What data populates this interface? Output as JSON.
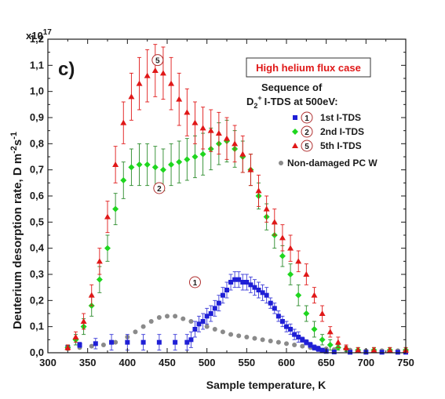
{
  "chart_data": {
    "type": "scatter",
    "panel_label": "c)",
    "title_box": "High helium flux case",
    "legend_header": [
      "Sequence of",
      "I-TDS at 500eV:"
    ],
    "legend_species": {
      "base": "D",
      "sub": "2",
      "sup": "+"
    },
    "xlabel": "Sample temperature, K",
    "ylabel_main": "Deuterium desorption rate,  D m",
    "ylabel_exp1": "-2",
    "ylabel_mid": "s",
    "ylabel_exp2": "-1",
    "y_multiplier": "x10",
    "y_multiplier_exp": "17",
    "xlim": [
      300,
      750
    ],
    "ylim": [
      0,
      1.2
    ],
    "x_ticks": [
      "300",
      "350",
      "400",
      "450",
      "500",
      "550",
      "600",
      "650",
      "700",
      "750"
    ],
    "y_ticks": [
      "0,0",
      "0,1",
      "0,2",
      "0,3",
      "0,4",
      "0,5",
      "0,6",
      "0,7",
      "0,8",
      "0,9",
      "1,0",
      "1,1",
      "1,2"
    ],
    "legend": [
      {
        "marker_label": "1",
        "name": "1st I-TDS",
        "color": "#1f1fd6",
        "shape": "square"
      },
      {
        "marker_label": "2",
        "name": "2nd I-TDS",
        "color": "#1fd61f",
        "shape": "diamond"
      },
      {
        "marker_label": "5",
        "name": "5th I-TDS",
        "color": "#e01818",
        "shape": "triangle"
      },
      {
        "marker_label": "",
        "name": "Non-damaged PC W",
        "color": "#8a8a8a",
        "shape": "circle"
      }
    ],
    "curve_markers": [
      {
        "label": "5",
        "x": 438,
        "y": 1.12
      },
      {
        "label": "2",
        "x": 440,
        "y": 0.63
      },
      {
        "label": "1",
        "x": 485,
        "y": 0.27
      }
    ],
    "series": [
      {
        "name": "1st I-TDS",
        "color": "#1f1fd6",
        "error_color": "#3a3ad8",
        "x": [
          325,
          340,
          360,
          380,
          400,
          420,
          440,
          460,
          475,
          480,
          485,
          490,
          495,
          500,
          505,
          510,
          515,
          520,
          525,
          530,
          535,
          540,
          545,
          550,
          555,
          560,
          565,
          570,
          575,
          580,
          585,
          590,
          595,
          600,
          605,
          610,
          615,
          620,
          625,
          630,
          635,
          640,
          645,
          650,
          660,
          680,
          700,
          720,
          740,
          750
        ],
        "y": [
          0.02,
          0.03,
          0.035,
          0.04,
          0.04,
          0.04,
          0.04,
          0.04,
          0.04,
          0.05,
          0.09,
          0.11,
          0.12,
          0.14,
          0.15,
          0.17,
          0.19,
          0.22,
          0.24,
          0.27,
          0.28,
          0.28,
          0.27,
          0.27,
          0.26,
          0.25,
          0.24,
          0.23,
          0.22,
          0.19,
          0.17,
          0.14,
          0.12,
          0.1,
          0.09,
          0.07,
          0.06,
          0.05,
          0.04,
          0.03,
          0.02,
          0.015,
          0.01,
          0.005,
          0.003,
          0.002,
          0.002,
          0.002,
          0.002,
          0.002
        ],
        "err": [
          0.005,
          0.01,
          0.02,
          0.03,
          0.03,
          0.03,
          0.03,
          0.03,
          0.03,
          0.03,
          0.03,
          0.03,
          0.03,
          0.03,
          0.03,
          0.03,
          0.03,
          0.03,
          0.03,
          0.03,
          0.03,
          0.03,
          0.03,
          0.03,
          0.03,
          0.03,
          0.03,
          0.03,
          0.03,
          0.02,
          0.02,
          0.02,
          0.02,
          0.02,
          0.02,
          0.02,
          0.02,
          0.01,
          0.01,
          0.01,
          0.01,
          0.01,
          0.005,
          0.005,
          0.003,
          0.002,
          0.002,
          0.002,
          0.002,
          0.002
        ]
      },
      {
        "name": "2nd I-TDS",
        "color": "#1fd61f",
        "error_color": "#2a8a2a",
        "x": [
          325,
          335,
          345,
          355,
          365,
          375,
          385,
          395,
          405,
          415,
          425,
          435,
          445,
          455,
          465,
          475,
          485,
          495,
          505,
          515,
          525,
          535,
          545,
          555,
          565,
          575,
          585,
          595,
          605,
          615,
          625,
          635,
          645,
          655,
          665,
          675,
          690,
          710,
          730,
          750
        ],
        "y": [
          0.02,
          0.05,
          0.1,
          0.18,
          0.28,
          0.4,
          0.55,
          0.66,
          0.71,
          0.72,
          0.72,
          0.71,
          0.7,
          0.72,
          0.73,
          0.74,
          0.75,
          0.76,
          0.78,
          0.8,
          0.81,
          0.78,
          0.75,
          0.7,
          0.6,
          0.52,
          0.45,
          0.37,
          0.3,
          0.22,
          0.15,
          0.09,
          0.05,
          0.03,
          0.02,
          0.015,
          0.01,
          0.01,
          0.01,
          0.01
        ],
        "err": [
          0.01,
          0.02,
          0.03,
          0.04,
          0.05,
          0.05,
          0.06,
          0.07,
          0.07,
          0.08,
          0.08,
          0.08,
          0.08,
          0.08,
          0.08,
          0.08,
          0.08,
          0.08,
          0.08,
          0.08,
          0.08,
          0.07,
          0.06,
          0.06,
          0.05,
          0.05,
          0.05,
          0.04,
          0.04,
          0.04,
          0.03,
          0.03,
          0.02,
          0.02,
          0.01,
          0.01,
          0.01,
          0.01,
          0.01,
          0.01
        ]
      },
      {
        "name": "5th I-TDS",
        "color": "#e01818",
        "error_color": "#e01818",
        "x": [
          325,
          335,
          345,
          355,
          365,
          375,
          385,
          395,
          405,
          415,
          425,
          435,
          445,
          455,
          465,
          475,
          485,
          495,
          505,
          515,
          525,
          535,
          545,
          555,
          565,
          575,
          585,
          595,
          605,
          615,
          625,
          635,
          645,
          655,
          665,
          675,
          690,
          710,
          730,
          750
        ],
        "y": [
          0.02,
          0.06,
          0.12,
          0.22,
          0.35,
          0.52,
          0.72,
          0.88,
          0.98,
          1.03,
          1.06,
          1.08,
          1.07,
          1.03,
          0.97,
          0.92,
          0.88,
          0.86,
          0.85,
          0.84,
          0.82,
          0.8,
          0.76,
          0.7,
          0.62,
          0.55,
          0.5,
          0.44,
          0.4,
          0.35,
          0.3,
          0.22,
          0.15,
          0.08,
          0.04,
          0.02,
          0.01,
          0.01,
          0.01,
          0.01
        ],
        "err": [
          0.01,
          0.02,
          0.03,
          0.04,
          0.05,
          0.06,
          0.07,
          0.08,
          0.09,
          0.1,
          0.1,
          0.1,
          0.1,
          0.1,
          0.1,
          0.09,
          0.08,
          0.08,
          0.08,
          0.08,
          0.08,
          0.07,
          0.07,
          0.06,
          0.06,
          0.05,
          0.05,
          0.05,
          0.05,
          0.04,
          0.04,
          0.03,
          0.03,
          0.02,
          0.02,
          0.01,
          0.01,
          0.01,
          0.01,
          0.01
        ]
      },
      {
        "name": "Non-damaged PC W",
        "color": "#8a8a8a",
        "error_color": "#8a8a8a",
        "x": [
          325,
          340,
          355,
          370,
          385,
          400,
          410,
          420,
          430,
          440,
          450,
          460,
          470,
          480,
          490,
          500,
          510,
          520,
          530,
          540,
          550,
          560,
          570,
          580,
          590,
          600,
          610,
          620,
          630,
          640,
          650,
          660,
          680,
          700,
          720,
          740
        ],
        "y": [
          0.02,
          0.02,
          0.025,
          0.03,
          0.04,
          0.06,
          0.08,
          0.1,
          0.12,
          0.135,
          0.14,
          0.14,
          0.13,
          0.12,
          0.11,
          0.1,
          0.09,
          0.08,
          0.07,
          0.065,
          0.06,
          0.055,
          0.05,
          0.045,
          0.04,
          0.035,
          0.03,
          0.025,
          0.02,
          0.018,
          0.015,
          0.012,
          0.01,
          0.008,
          0.008,
          0.008
        ],
        "err": []
      }
    ]
  }
}
